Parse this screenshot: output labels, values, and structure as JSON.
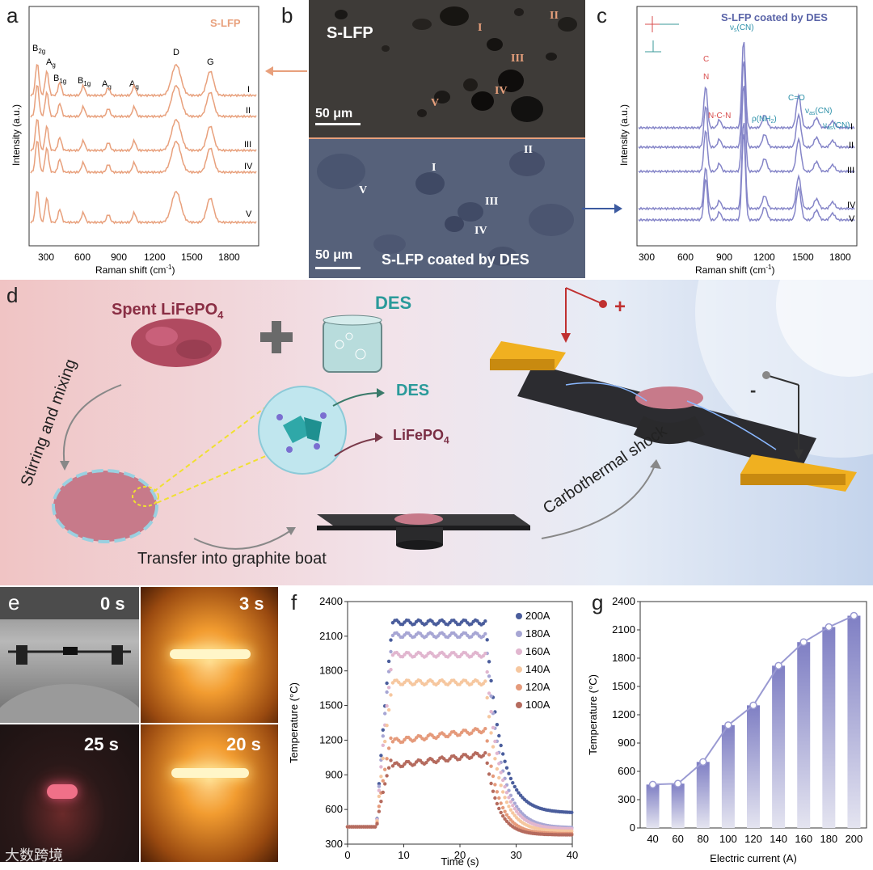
{
  "figure": {
    "panel_letters": [
      "a",
      "b",
      "c",
      "d",
      "e",
      "f",
      "g"
    ],
    "colors": {
      "slfp": "#e8a07c",
      "des": "#8585c8",
      "des_title": "#5a64a8",
      "arrow_orange": "#e8a07c",
      "arrow_blue": "#3c5aa0",
      "schematic_bg_left": "#f2c7c7",
      "schematic_bg_right": "#c8d8ee"
    }
  },
  "panel_a": {
    "legend": "S-LFP",
    "ylabel": "Intensity (a.u.)",
    "xlabel": "Raman shift (cm",
    "xlabel_sup": "-1",
    "xlabel_end": ")",
    "xticks": [
      "300",
      "600",
      "900",
      "1200",
      "1500",
      "1800"
    ],
    "peaks": [
      {
        "label": "B",
        "sub": "2g"
      },
      {
        "label": "A",
        "sub": "g"
      },
      {
        "label": "B",
        "sub": "1g"
      },
      {
        "label": "B",
        "sub": "1g"
      },
      {
        "label": "A",
        "sub": "g"
      },
      {
        "label": "A",
        "sub": "g"
      },
      {
        "label": "D",
        "sub": ""
      },
      {
        "label": "G",
        "sub": ""
      }
    ],
    "traces": [
      "I",
      "II",
      "III",
      "IV",
      "V"
    ]
  },
  "panel_b": {
    "top_title": "S-LFP",
    "top_points": [
      "I",
      "II",
      "III",
      "IV",
      "V"
    ],
    "bottom_title": "S-LFP coated by DES",
    "bottom_points": [
      "I",
      "II",
      "III",
      "IV",
      "V"
    ],
    "scalebar_top": "50 μm",
    "scalebar_bottom": "50 μm"
  },
  "panel_c": {
    "legend": "S-LFP coated by DES",
    "ylabel": "Intensity (a.u.)",
    "xlabel": "Raman shift (cm",
    "xlabel_sup": "-1",
    "xlabel_end": ")",
    "xticks": [
      "300",
      "600",
      "900",
      "1200",
      "1500",
      "1800"
    ],
    "annotations": {
      "vs_cn": "ν",
      "vs_sub": "s",
      "vs_end": "(CN)",
      "ncn": "N-C-N",
      "rho_nh2": "ρ(NH",
      "rho_sub": "2",
      "rho_end": ")",
      "co": "C=O",
      "vas1": "ν",
      "vas1_sub": "as",
      "vas1_end": "(CN)",
      "vas2": "ν",
      "vas2_sub": "as",
      "vas2_end": "(CN)",
      "n_plus": "N",
      "c_letter": "C"
    },
    "traces": [
      "I",
      "II",
      "III",
      "IV",
      "V"
    ]
  },
  "panel_d": {
    "spent_lfp": "Spent LiFePO",
    "spent_lfp_sub": "4",
    "des": "DES",
    "stirring": "Stirring and mixing",
    "des_label": "DES",
    "lfp_label": "LiFePO",
    "lfp_label_sub": "4",
    "transfer": "Transfer into graphite boat",
    "carbothermal": "Carbothermal shock",
    "plus": "+",
    "minus": "-"
  },
  "panel_e": {
    "frames": [
      {
        "time": "0 s"
      },
      {
        "time": "3 s"
      },
      {
        "time": "25 s"
      },
      {
        "time": "20 s"
      }
    ]
  },
  "watermark": "大数跨境",
  "chart_data": [
    {
      "type": "line",
      "panel": "f",
      "xlabel": "Time (s)",
      "ylabel": "Temperature (°C)",
      "xlim": [
        0,
        40
      ],
      "ylim": [
        300,
        2400
      ],
      "xticks": [
        0,
        10,
        20,
        30,
        40
      ],
      "yticks": [
        300,
        600,
        900,
        1200,
        1500,
        1800,
        2100,
        2400
      ],
      "legend_position": "top-right",
      "series": [
        {
          "name": "200A",
          "color": "#4a5d9c",
          "plateau": 2220,
          "baseline": 570
        },
        {
          "name": "180A",
          "color": "#a7a6d4",
          "plateau": 2110,
          "baseline": 440
        },
        {
          "name": "160A",
          "color": "#e1b6cf",
          "plateau": 1940,
          "baseline": 430
        },
        {
          "name": "140A",
          "color": "#f6c79f",
          "plateau": 1700,
          "baseline": 410
        },
        {
          "name": "120A",
          "color": "#e59a7b",
          "plateau": 1290,
          "baseline": 390
        },
        {
          "name": "100A",
          "color": "#b56b5e",
          "plateau": 1080,
          "baseline": 380
        }
      ]
    },
    {
      "type": "bar",
      "panel": "g",
      "xlabel": "Electric current (A)",
      "ylabel": "Temperature (°C)",
      "categories": [
        "40",
        "60",
        "80",
        "100",
        "120",
        "140",
        "160",
        "180",
        "200"
      ],
      "values": [
        460,
        470,
        700,
        1090,
        1300,
        1720,
        1970,
        2130,
        2250
      ],
      "ylim": [
        0,
        2400
      ],
      "yticks": [
        0,
        300,
        600,
        900,
        1200,
        1500,
        1800,
        2100,
        2400
      ],
      "overlay_line": true
    }
  ]
}
